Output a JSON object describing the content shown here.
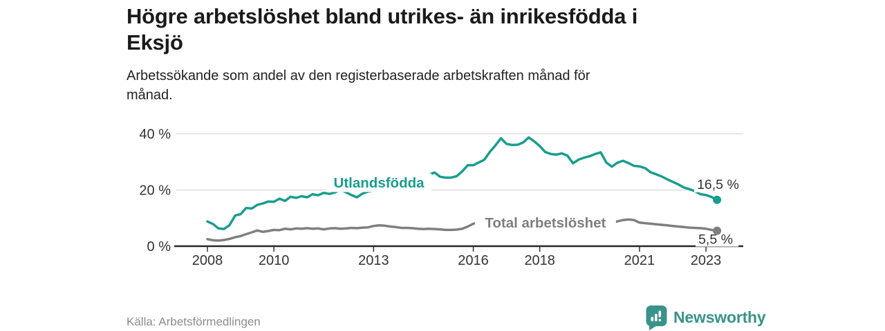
{
  "header": {
    "title_lines": [
      "Högre arbetslöshet bland utrikes- än inrikesfödda i",
      "Eksjö"
    ],
    "subtitle_lines": [
      "Arbetssökande som andel av den registerbaserade arbetskraften månad för",
      "månad."
    ]
  },
  "footer": {
    "source": "Källa: Arbetsförmedlingen",
    "brand": "Newsworthy"
  },
  "colors": {
    "accent_teal": "#199d8d",
    "line_gray": "#7f7f7f",
    "axis_line": "#262626",
    "gridline": "#d8d8d8",
    "axis_text": "#333333",
    "brand_teal": "#38938a"
  },
  "chart_data": {
    "type": "line",
    "title": "Högre arbetslöshet bland utrikes- än inrikesfödda i Eksjö",
    "xlabel": "",
    "ylabel": "",
    "x_start_year": 2008,
    "x_step_years": 0.16667,
    "x_end_year": 2023.33,
    "x_ticks": [
      2008,
      2010,
      2013,
      2016,
      2018,
      2021,
      2023
    ],
    "y_ticks": [
      0,
      20,
      40
    ],
    "y_tick_labels": [
      "0 %",
      "20 %",
      "40 %"
    ],
    "ylim": [
      0,
      42
    ],
    "grid": "horizontal",
    "legend_position": "inline-labels",
    "series": [
      {
        "name": "Utlandsfödda",
        "color": "#199d8d",
        "end_value": 16.5,
        "end_value_label": "16,5 %",
        "label": {
          "text": "Utlandsfödda",
          "x": 2013.16,
          "y": 22.6
        },
        "values": [
          8.8,
          7.9,
          6.3,
          6.1,
          7.5,
          10.9,
          11.4,
          13.6,
          13.4,
          14.7,
          15.2,
          15.9,
          15.8,
          16.9,
          16.1,
          17.6,
          17.2,
          17.8,
          17.4,
          18.5,
          18.1,
          19.0,
          18.6,
          19.1,
          20.1,
          19.2,
          18.2,
          17.4,
          18.7,
          19.4,
          19.8,
          20.3,
          20.8,
          21.3,
          21.8,
          22.3,
          23.0,
          23.6,
          24.2,
          23.5,
          25.5,
          26.2,
          24.7,
          24.4,
          24.4,
          24.9,
          26.6,
          28.8,
          28.8,
          29.8,
          30.8,
          33.6,
          35.9,
          38.4,
          36.4,
          36.0,
          36.1,
          36.9,
          38.7,
          37.3,
          35.6,
          33.5,
          32.8,
          32.6,
          33.0,
          32.2,
          29.5,
          30.8,
          31.5,
          32.0,
          32.8,
          33.4,
          29.8,
          28.3,
          29.7,
          30.4,
          29.6,
          28.6,
          28.4,
          27.8,
          26.3,
          25.6,
          24.8,
          23.8,
          22.9,
          22.0,
          20.9,
          20.3,
          19.6,
          18.5,
          18.2,
          17.5,
          16.5
        ]
      },
      {
        "name": "Total arbetslöshet",
        "color": "#7f7f7f",
        "end_value": 5.5,
        "end_value_label": "5,5 %",
        "label": {
          "text": "Total arbetslöshet",
          "x": 2018.17,
          "y": 8.3
        },
        "values": [
          2.5,
          2.1,
          2.0,
          2.2,
          2.6,
          3.2,
          3.6,
          4.3,
          4.9,
          5.6,
          5.1,
          5.4,
          5.8,
          5.7,
          6.2,
          6.0,
          6.3,
          6.2,
          6.4,
          6.2,
          6.3,
          6.0,
          6.3,
          6.4,
          6.2,
          6.3,
          6.5,
          6.4,
          6.6,
          6.7,
          7.2,
          7.4,
          7.3,
          7.0,
          6.8,
          6.5,
          6.5,
          6.4,
          6.2,
          6.1,
          6.2,
          6.1,
          6.0,
          5.8,
          5.8,
          5.9,
          6.2,
          7.0,
          8.0,
          8.6,
          7.8,
          6.8,
          6.2,
          6.4,
          6.5,
          6.6,
          6.6,
          6.5,
          6.4,
          6.4,
          6.3,
          6.2,
          6.1,
          6.0,
          6.0,
          5.9,
          5.9,
          6.0,
          6.1,
          6.3,
          6.6,
          7.0,
          7.6,
          8.2,
          8.8,
          9.3,
          9.5,
          9.3,
          8.4,
          8.2,
          8.0,
          7.8,
          7.6,
          7.4,
          7.2,
          7.0,
          6.8,
          6.6,
          6.5,
          6.4,
          6.2,
          5.8,
          5.5
        ]
      }
    ]
  }
}
